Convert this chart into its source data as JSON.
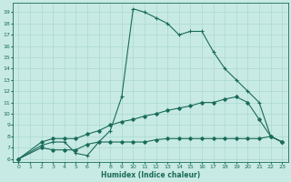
{
  "xlabel": "Humidex (Indice chaleur)",
  "bg_color": "#c8eae4",
  "line_color": "#1a6b5a",
  "grid_color": "#aad8d0",
  "xlim": [
    -0.5,
    23.5
  ],
  "ylim": [
    5.7,
    19.8
  ],
  "xticks": [
    0,
    1,
    2,
    3,
    4,
    5,
    6,
    7,
    8,
    9,
    10,
    11,
    12,
    13,
    14,
    15,
    16,
    17,
    18,
    19,
    20,
    21,
    22,
    23
  ],
  "yticks": [
    6,
    7,
    8,
    9,
    10,
    11,
    12,
    13,
    14,
    15,
    16,
    17,
    18,
    19
  ],
  "line1_x": [
    0,
    2,
    3,
    4,
    5,
    6,
    7,
    8,
    9,
    10,
    11,
    12,
    13,
    14,
    15,
    16,
    17,
    18,
    19,
    20,
    21,
    22,
    23
  ],
  "line1_y": [
    6,
    7.2,
    7.5,
    7.5,
    6.5,
    6.3,
    7.5,
    8.5,
    11.5,
    19.3,
    19.0,
    18.5,
    18.0,
    17.0,
    17.3,
    17.3,
    15.5,
    14.0,
    13.0,
    12.0,
    11.0,
    8.0,
    7.5
  ],
  "line2_x": [
    0,
    2,
    3,
    4,
    5,
    6,
    7,
    8,
    9,
    10,
    11,
    12,
    13,
    14,
    15,
    16,
    17,
    18,
    19,
    20,
    21,
    22,
    23
  ],
  "line2_y": [
    6,
    7.5,
    7.8,
    7.8,
    7.8,
    8.2,
    8.5,
    9.0,
    9.3,
    9.5,
    9.8,
    10.0,
    10.3,
    10.5,
    10.7,
    11.0,
    11.0,
    11.3,
    11.5,
    11.0,
    9.5,
    8.0,
    7.5
  ],
  "line3_x": [
    0,
    2,
    3,
    4,
    5,
    6,
    7,
    8,
    9,
    10,
    11,
    12,
    13,
    14,
    15,
    16,
    17,
    18,
    19,
    20,
    21,
    22,
    23
  ],
  "line3_y": [
    6,
    7.0,
    6.8,
    6.8,
    6.8,
    7.3,
    7.5,
    7.5,
    7.5,
    7.5,
    7.5,
    7.7,
    7.8,
    7.8,
    7.8,
    7.8,
    7.8,
    7.8,
    7.8,
    7.8,
    7.8,
    8.0,
    7.5
  ]
}
